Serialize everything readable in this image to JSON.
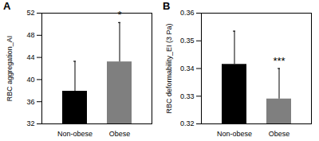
{
  "chart_data": [
    {
      "type": "bar",
      "title": "A",
      "y_label": "RBC aggregation_AI",
      "categories": [
        "Non-obese",
        "Obese"
      ],
      "values": [
        37.9,
        43.2
      ],
      "errors": [
        5.4,
        7.1
      ],
      "colors": [
        "#000000",
        "#7f7f7f"
      ],
      "ylim": [
        32,
        52
      ],
      "yticks": [
        32,
        36,
        40,
        44,
        48,
        52
      ],
      "grid": false,
      "annotations": [
        {
          "category": "Obese",
          "text": "*"
        }
      ]
    },
    {
      "type": "bar",
      "title": "B",
      "y_label": "RBC deformability_EI (3 Pa)",
      "categories": [
        "Non-obese",
        "Obese"
      ],
      "values": [
        0.3415,
        0.329
      ],
      "errors": [
        0.012,
        0.011
      ],
      "colors": [
        "#000000",
        "#7f7f7f"
      ],
      "ylim": [
        0.32,
        0.36
      ],
      "yticks": [
        0.32,
        0.33,
        0.34,
        0.35,
        0.36
      ],
      "grid": false,
      "annotations": [
        {
          "category": "Obese",
          "text": "***"
        }
      ]
    }
  ]
}
